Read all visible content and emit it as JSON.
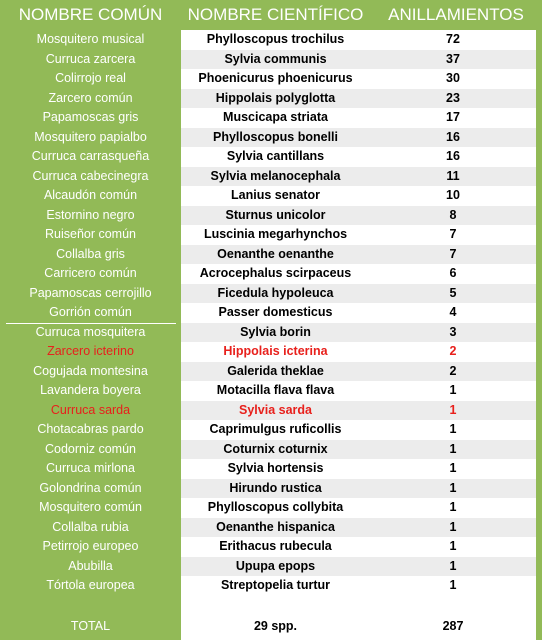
{
  "headers": {
    "common": "NOMBRE COMÚN",
    "scientific": "NOMBRE CIENTÍFICO",
    "count": "ANILLAMIENTOS"
  },
  "colors": {
    "green": "#92ba57",
    "highlight_red": "#e8201c",
    "alt_row": "#ececec"
  },
  "rows": [
    {
      "common": "Mosquitero musical",
      "scientific": "Phylloscopus trochilus",
      "count": "72"
    },
    {
      "common": "Curruca zarcera",
      "scientific": "Sylvia communis",
      "count": "37"
    },
    {
      "common": "Colirrojo real",
      "scientific": "Phoenicurus phoenicurus",
      "count": "30"
    },
    {
      "common": "Zarcero común",
      "scientific": "Hippolais polyglotta",
      "count": "23"
    },
    {
      "common": "Papamoscas gris",
      "scientific": "Muscicapa striata",
      "count": "17"
    },
    {
      "common": "Mosquitero papialbo",
      "scientific": "Phylloscopus bonelli",
      "count": "16"
    },
    {
      "common": "Curruca carrasqueña",
      "scientific": "Sylvia cantillans",
      "count": "16"
    },
    {
      "common": "Curruca cabecinegra",
      "scientific": "Sylvia melanocephala",
      "count": "11"
    },
    {
      "common": "Alcaudón común",
      "scientific": "Lanius senator",
      "count": "10"
    },
    {
      "common": "Estornino negro",
      "scientific": "Sturnus unicolor",
      "count": "8"
    },
    {
      "common": "Ruiseñor común",
      "scientific": "Luscinia megarhynchos",
      "count": "7"
    },
    {
      "common": "Collalba gris",
      "scientific": "Oenanthe oenanthe",
      "count": "7"
    },
    {
      "common": "Carricero común",
      "scientific": "Acrocephalus scirpaceus",
      "count": "6"
    },
    {
      "common": "Papamoscas cerrojillo",
      "scientific": "Ficedula hypoleuca",
      "count": "5"
    },
    {
      "common": "Gorrión común",
      "scientific": "Passer domesticus",
      "count": "4"
    },
    {
      "common": "Curruca mosquitera",
      "scientific": "Sylvia borin",
      "count": "3"
    },
    {
      "common": "Zarcero icterino",
      "scientific": "Hippolais icterina",
      "count": "2",
      "highlight": true
    },
    {
      "common": "Cogujada montesina",
      "scientific": "Galerida theklae",
      "count": "2"
    },
    {
      "common": "Lavandera boyera",
      "scientific": "Motacilla flava flava",
      "count": "1"
    },
    {
      "common": "Curruca sarda",
      "scientific": "Sylvia sarda",
      "count": "1",
      "highlight": true
    },
    {
      "common": "Chotacabras pardo",
      "scientific": "Caprimulgus ruficollis",
      "count": "1"
    },
    {
      "common": "Codorniz común",
      "scientific": "Coturnix coturnix",
      "count": "1"
    },
    {
      "common": "Curruca mirlona",
      "scientific": "Sylvia hortensis",
      "count": "1"
    },
    {
      "common": "Golondrina común",
      "scientific": "Hirundo rustica",
      "count": "1"
    },
    {
      "common": "Mosquitero común",
      "scientific": "Phylloscopus collybita",
      "count": "1"
    },
    {
      "common": "Collalba rubia",
      "scientific": "Oenanthe hispanica",
      "count": "1"
    },
    {
      "common": "Petirrojo europeo",
      "scientific": "Erithacus rubecula",
      "count": "1"
    },
    {
      "common": "Abubilla",
      "scientific": "Upupa epops",
      "count": "1"
    },
    {
      "common": "Tórtola europea",
      "scientific": "Streptopelia turtur",
      "count": "1"
    }
  ],
  "total": {
    "label": "TOTAL",
    "species": "29 spp.",
    "count": "287"
  }
}
